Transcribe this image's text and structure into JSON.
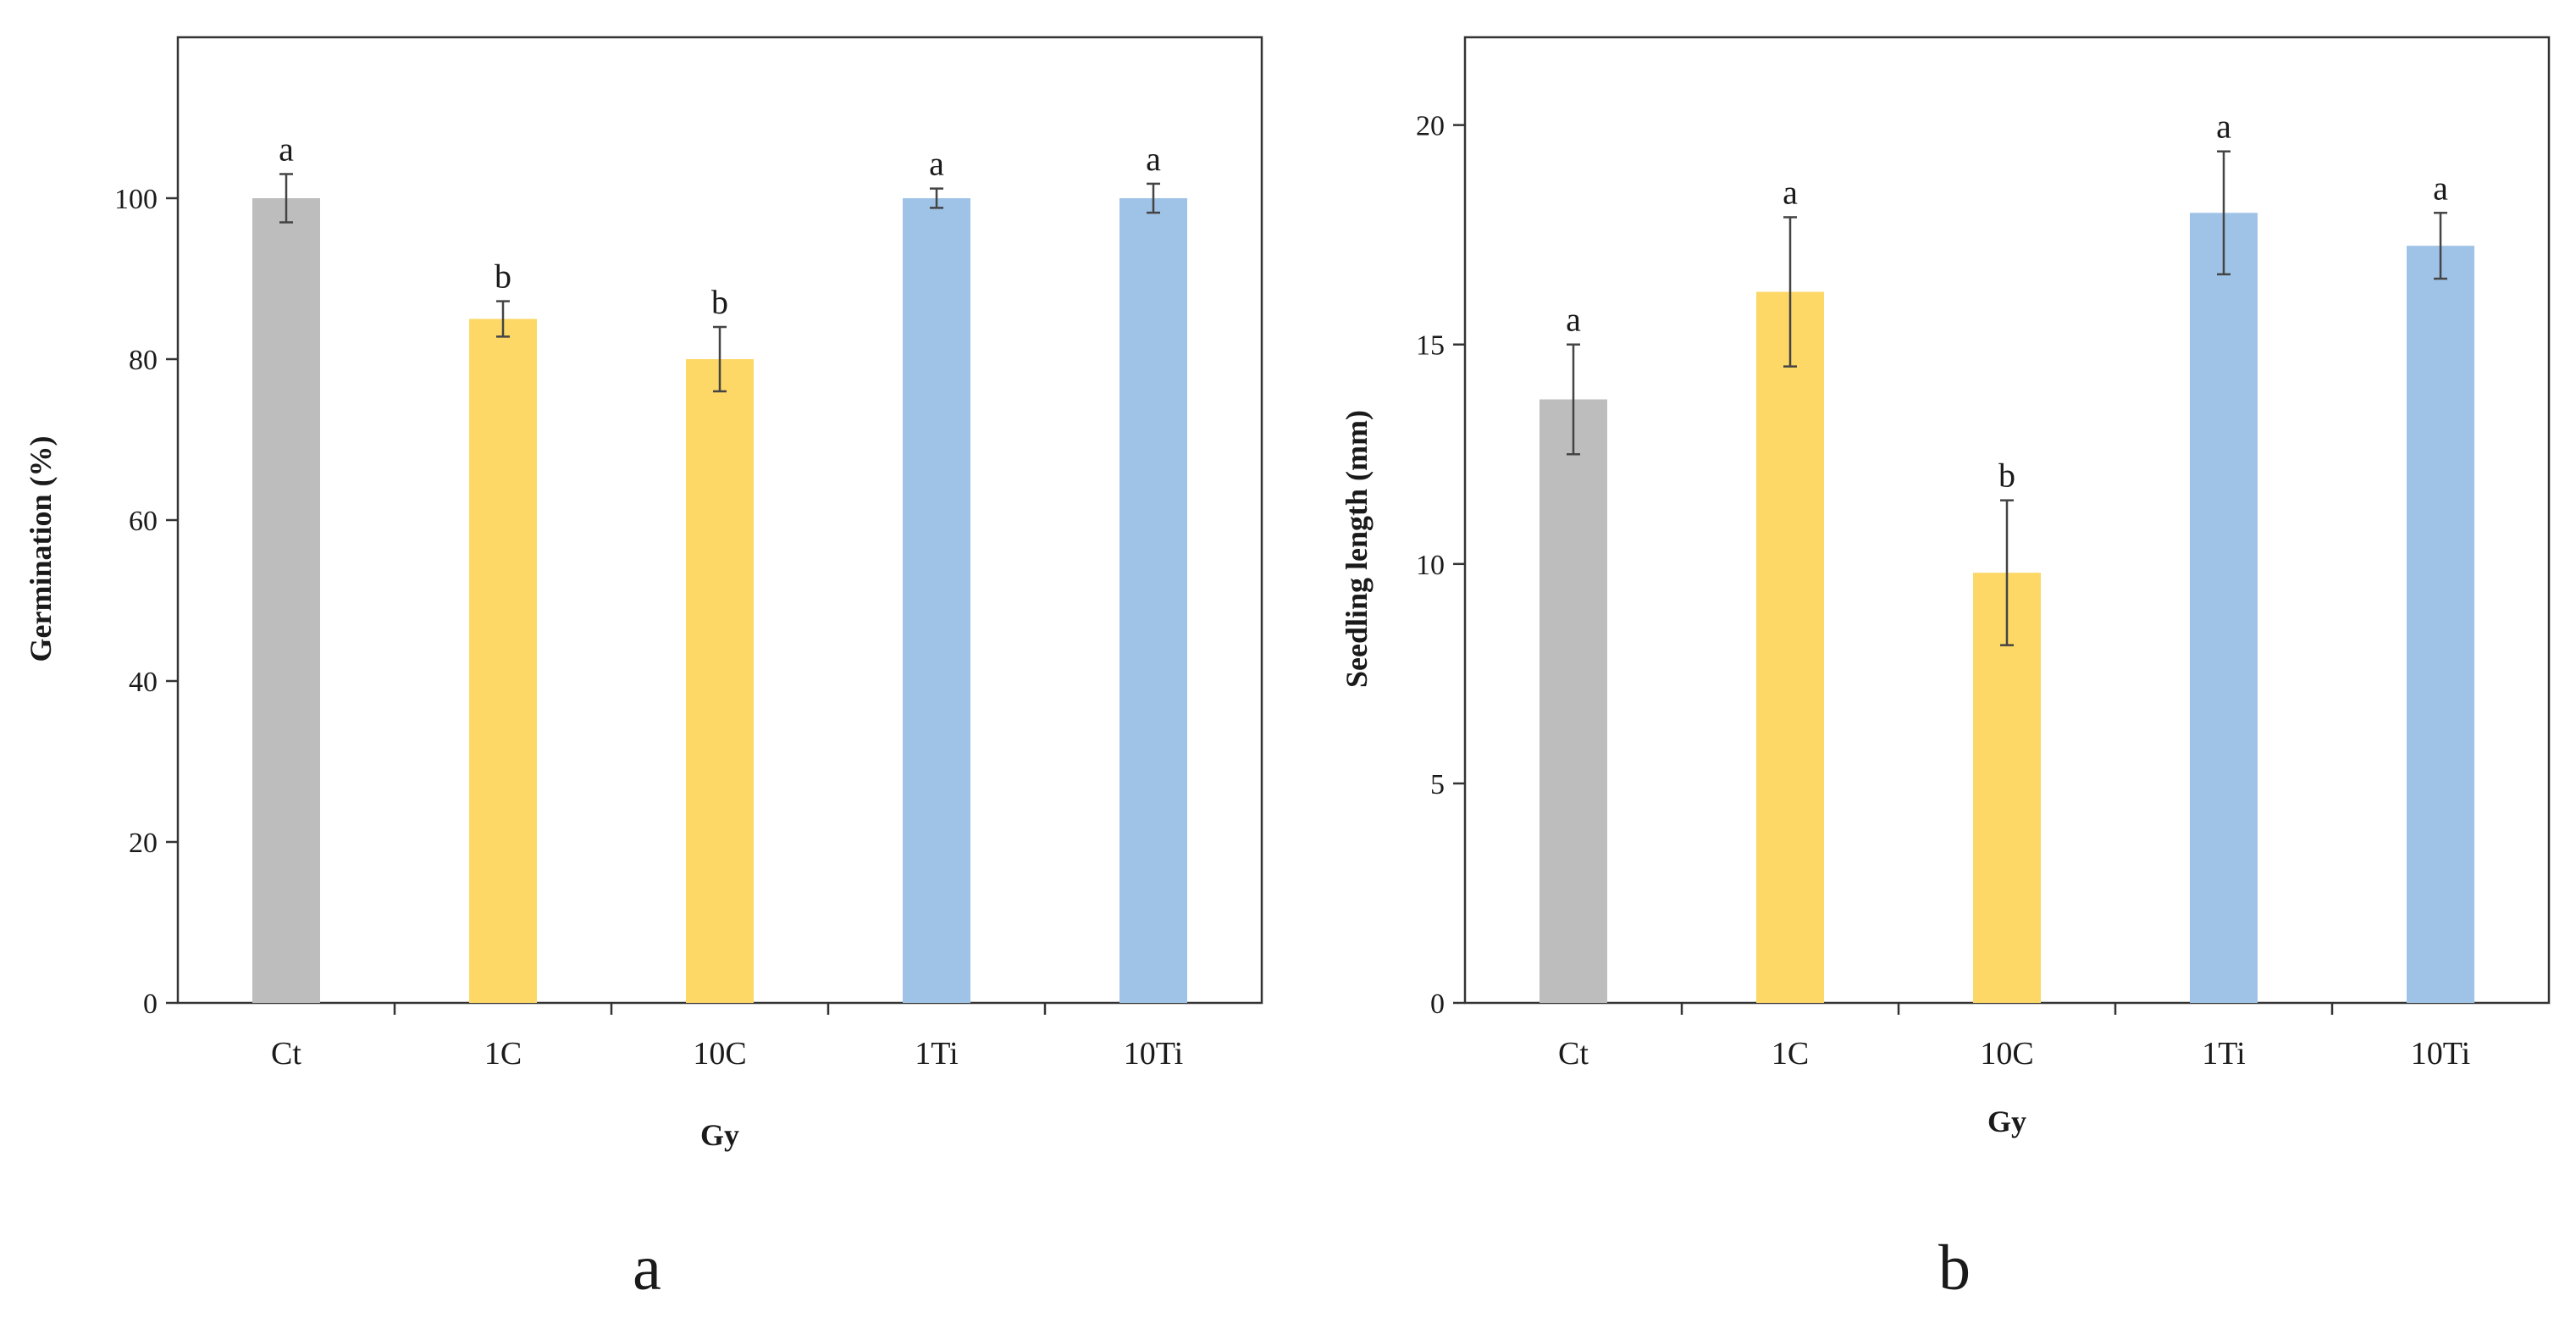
{
  "colors": {
    "ct": "#bdbdbd",
    "c": "#fdd866",
    "ti": "#9fc3e7",
    "axis": "#333333",
    "error": "#444444"
  },
  "chart_data": [
    {
      "type": "bar",
      "panel_label": "a",
      "xlabel": "Gy",
      "ylabel": "Germination (%)",
      "categories": [
        "Ct",
        "1C",
        "10C",
        "1Ti",
        "10Ti"
      ],
      "values": [
        100,
        85,
        80,
        100,
        100
      ],
      "errors": [
        3,
        2.2,
        4,
        1.2,
        1.8
      ],
      "significance": [
        "a",
        "b",
        "b",
        "a",
        "a"
      ],
      "color_keys": [
        "ct",
        "c",
        "c",
        "ti",
        "ti"
      ],
      "ylim": [
        0,
        120
      ],
      "yticks": [
        0,
        20,
        40,
        60,
        80,
        100
      ],
      "grid": false
    },
    {
      "type": "bar",
      "panel_label": "b",
      "xlabel": "Gy",
      "ylabel": "Seedling length (mm)",
      "categories": [
        "Ct",
        "1C",
        "10C",
        "1Ti",
        "10Ti"
      ],
      "values": [
        13.75,
        16.2,
        9.8,
        18.0,
        17.25
      ],
      "errors": [
        1.25,
        1.7,
        1.65,
        1.4,
        0.75
      ],
      "significance": [
        "a",
        "a",
        "b",
        "a",
        "a"
      ],
      "color_keys": [
        "ct",
        "c",
        "c",
        "ti",
        "ti"
      ],
      "ylim": [
        0,
        22
      ],
      "yticks": [
        0,
        5,
        10,
        15,
        20
      ],
      "grid": false
    }
  ]
}
